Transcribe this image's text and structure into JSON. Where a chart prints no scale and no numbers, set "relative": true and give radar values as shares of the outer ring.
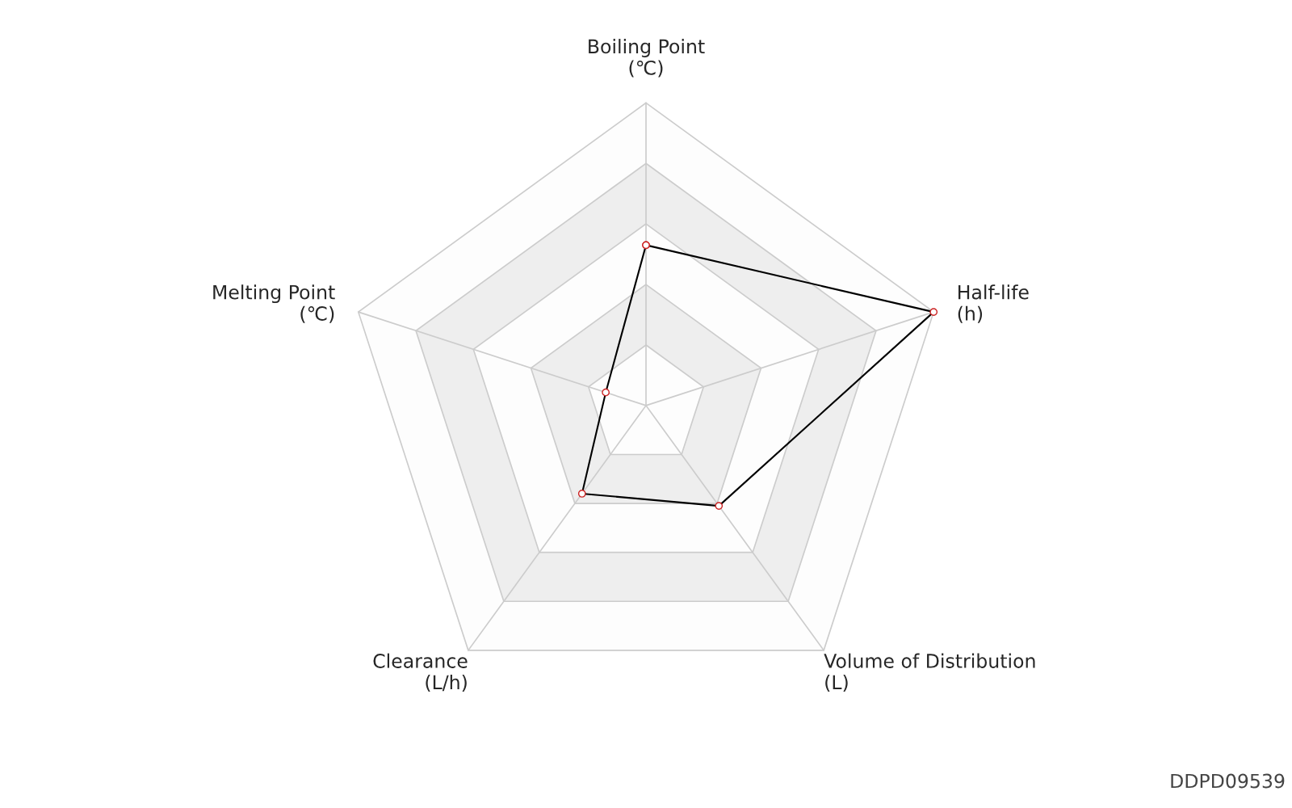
{
  "chart_data": {
    "type": "radar",
    "relative": true,
    "categories": [
      "Boiling Point\n(℃)",
      "Half-life\n(h)",
      "Volume of Distribution\n(L)",
      "Clearance\n(L/h)",
      "Melting Point\n(℃)"
    ],
    "series": [
      {
        "color": "#000000",
        "values": [
          0.53,
          1.0,
          0.41,
          0.36,
          0.14
        ]
      }
    ],
    "marker": "circle",
    "line_style": "solid",
    "annotations": [
      "DDPD09539"
    ]
  }
}
